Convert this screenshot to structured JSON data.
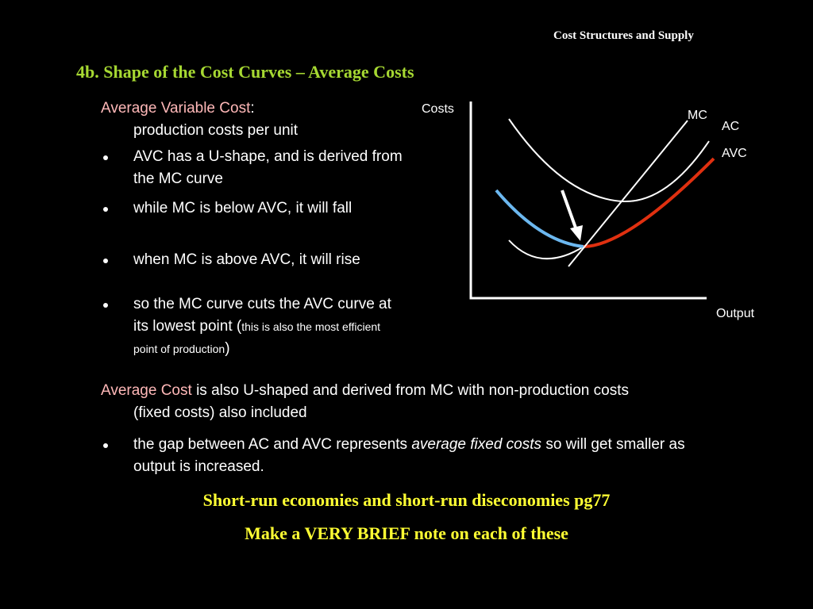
{
  "header": {
    "section": "Cost Structures and Supply",
    "title": "4b. Shape of the Cost Curves – Average Costs"
  },
  "avc": {
    "term": "Average Variable Cost",
    "term_end": ":",
    "definition": "production costs per unit",
    "bullets": [
      {
        "text": "AVC has a U-shape, and is derived from the MC curve"
      },
      {
        "text": "while MC is below AVC, it will fall"
      },
      {
        "text": "when MC is above AVC, it will rise"
      },
      {
        "text": "so the MC curve cuts the AVC curve at its lowest point (",
        "note": "this is also the most efficient point of production",
        "close": ")"
      }
    ]
  },
  "ac": {
    "term": "Average Cost",
    "text": "is also U-shaped and derived from MC with non-production costs (fixed costs) also included",
    "bullets": [
      {
        "before": "the gap between AC and AVC represents",
        "emphasis": "average fixed costs",
        "after": "so will get smaller as output is increased."
      }
    ]
  },
  "notes": [
    "Short-run economies and short-run diseconomies pg77",
    "Make a VERY BRIEF note on each of these"
  ],
  "diagram": {
    "y_axis": "Costs",
    "x_axis": "Output",
    "curves": [
      "MC",
      "AC",
      "AVC"
    ]
  }
}
